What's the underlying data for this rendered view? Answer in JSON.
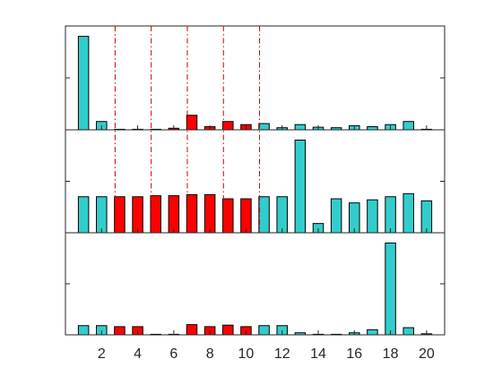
{
  "colors": {
    "background": "#ffffff",
    "axes": "#262626",
    "highlight_bar": "#ff0000",
    "normal_bar": "#33cccc",
    "bar_edge": "#000000",
    "separator": "#cc0000"
  },
  "chart_data": {
    "type": "bar",
    "layout": "three vertically stacked panels sharing one x axis",
    "grid": false,
    "x": [
      1,
      2,
      3,
      4,
      5,
      6,
      7,
      8,
      9,
      10,
      11,
      12,
      13,
      14,
      15,
      16,
      17,
      18,
      19,
      20
    ],
    "x_tick_values": [
      2,
      4,
      6,
      8,
      10,
      12,
      14,
      16,
      18,
      20
    ],
    "x_tick_labels": [
      "2",
      "4",
      "6",
      "8",
      "10",
      "12",
      "14",
      "16",
      "18",
      "20"
    ],
    "xlim": [
      0,
      21
    ],
    "highlighted_x": [
      3,
      4,
      5,
      6,
      7,
      8,
      9,
      10
    ],
    "vertical_separators_x": [
      2.75,
      4.75,
      6.75,
      8.75,
      10.75
    ],
    "panels": [
      {
        "ylim": [
          0,
          1
        ],
        "y_tick_values": [
          0.5
        ],
        "y_tick_labels": [],
        "values": [
          0.9,
          0.08,
          0.005,
          0.005,
          0.005,
          0.015,
          0.14,
          0.03,
          0.08,
          0.05,
          0.06,
          0.02,
          0.05,
          0.025,
          0.02,
          0.04,
          0.03,
          0.05,
          0.08,
          0.005
        ]
      },
      {
        "ylim": [
          0,
          1
        ],
        "y_tick_values": [
          0.5
        ],
        "y_tick_labels": [],
        "values": [
          0.35,
          0.35,
          0.35,
          0.35,
          0.36,
          0.36,
          0.37,
          0.37,
          0.33,
          0.33,
          0.35,
          0.35,
          0.9,
          0.09,
          0.33,
          0.29,
          0.32,
          0.35,
          0.38,
          0.31
        ]
      },
      {
        "ylim": [
          0,
          1
        ],
        "y_tick_values": [
          0.5
        ],
        "y_tick_labels": [],
        "values": [
          0.09,
          0.09,
          0.08,
          0.08,
          0.005,
          0.005,
          0.1,
          0.08,
          0.095,
          0.08,
          0.09,
          0.09,
          0.02,
          0.005,
          0.005,
          0.02,
          0.05,
          0.9,
          0.07,
          0.01
        ]
      }
    ]
  }
}
